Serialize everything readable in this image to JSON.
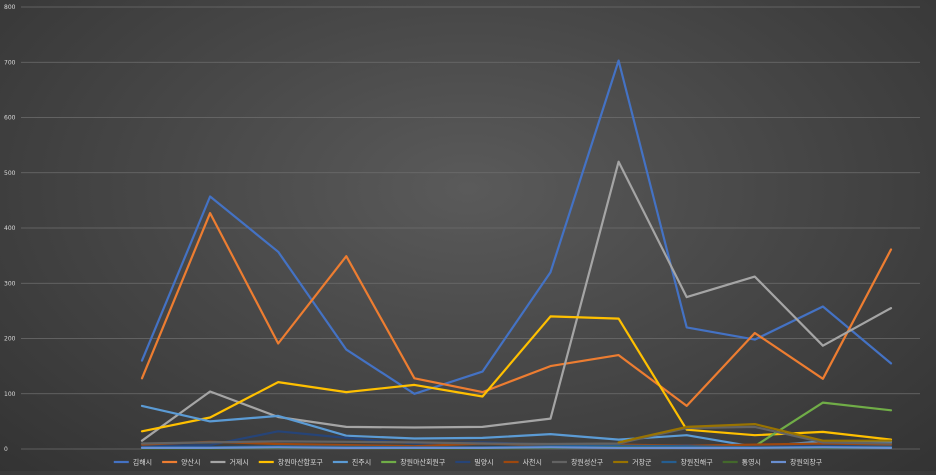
{
  "chart_data": {
    "type": "line",
    "title": "",
    "xlabel": "",
    "ylabel": "",
    "ylim": [
      0,
      800
    ],
    "yticks": [
      "0",
      "100",
      "200",
      "300",
      "400",
      "500",
      "600",
      "700",
      "800"
    ],
    "x": [
      1,
      2,
      3,
      4,
      5,
      6,
      7,
      8,
      9,
      10,
      11,
      12
    ],
    "grid": true,
    "legend_position": "bottom",
    "series": [
      {
        "name": "김해시",
        "color": "#4472c4",
        "values": [
          160,
          457,
          357,
          180,
          100,
          140,
          320,
          703,
          220,
          198,
          258,
          155
        ]
      },
      {
        "name": "양산시",
        "color": "#ed7d31",
        "values": [
          128,
          427,
          191,
          349,
          128,
          103,
          150,
          170,
          78,
          210,
          127,
          361
        ]
      },
      {
        "name": "거제시",
        "color": "#a5a5a5",
        "values": [
          15,
          104,
          58,
          40,
          39,
          40,
          55,
          520,
          275,
          312,
          187,
          255
        ]
      },
      {
        "name": "창원마산합포구",
        "color": "#ffc000",
        "values": [
          32,
          57,
          121,
          103,
          116,
          95,
          240,
          236,
          35,
          25,
          31,
          17
        ]
      },
      {
        "name": "진주시",
        "color": "#5b9bd5",
        "values": [
          78,
          50,
          60,
          24,
          19,
          20,
          27,
          17,
          25,
          4,
          14,
          13
        ]
      },
      {
        "name": "창원마산회원구",
        "color": "#70ad47",
        "values": [
          null,
          null,
          null,
          null,
          null,
          null,
          null,
          null,
          null,
          5,
          84,
          70
        ]
      },
      {
        "name": "밀양시",
        "color": "#264478",
        "values": [
          5,
          7,
          32,
          20,
          10,
          12,
          8,
          6,
          7,
          5,
          6,
          5
        ]
      },
      {
        "name": "사천시",
        "color": "#9e480e",
        "values": [
          8,
          13,
          9,
          7,
          5,
          10,
          7,
          8,
          6,
          8,
          10,
          8
        ]
      },
      {
        "name": "창원성산구",
        "color": "#636363",
        "values": [
          10,
          12,
          14,
          13,
          12,
          10,
          9,
          10,
          38,
          40,
          12,
          10
        ]
      },
      {
        "name": "거창군",
        "color": "#997300",
        "values": [
          null,
          null,
          null,
          null,
          null,
          null,
          null,
          12,
          40,
          45,
          15,
          15
        ]
      },
      {
        "name": "창원진해구",
        "color": "#255e91",
        "values": [
          3,
          3,
          5,
          4,
          3,
          3,
          5,
          6,
          5,
          3,
          4,
          4
        ]
      },
      {
        "name": "통영시",
        "color": "#43682b",
        "values": [
          1,
          1,
          2,
          2,
          1,
          1,
          2,
          3,
          2,
          2,
          2,
          2
        ]
      },
      {
        "name": "창원의창구",
        "color": "#698ed0",
        "values": [
          2,
          2,
          3,
          2,
          2,
          2,
          3,
          2,
          2,
          2,
          3,
          2
        ]
      }
    ]
  }
}
